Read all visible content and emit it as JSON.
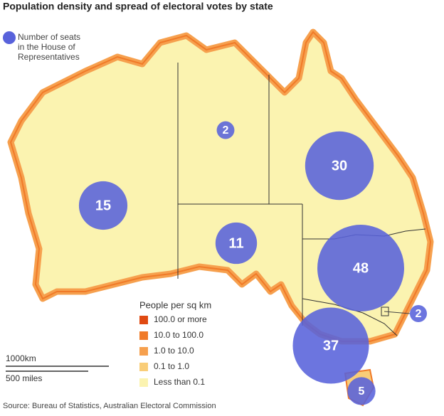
{
  "title": "Population density and spread of electoral votes by state",
  "seat_legend": {
    "color": "#5862db",
    "lines": [
      "Number of seats",
      "in the House of",
      "Representatives"
    ]
  },
  "density_legend": {
    "title": "People per sq km",
    "items": [
      {
        "label": "100.0 or more",
        "color": "#e04a12"
      },
      {
        "label": "10.0 to 100.0",
        "color": "#f07a28"
      },
      {
        "label": "1.0 to 10.0",
        "color": "#f6a04e"
      },
      {
        "label": "0.1 to 1.0",
        "color": "#f9cd78"
      },
      {
        "label": "Less than 0.1",
        "color": "#fbf3b0"
      }
    ]
  },
  "seats": [
    15,
    2,
    30,
    11,
    48,
    37,
    5,
    2
  ],
  "scale": {
    "km": "1000km",
    "miles": "500 miles"
  },
  "source": "Source: Bureau of Statistics, Australian Electoral Commission"
}
